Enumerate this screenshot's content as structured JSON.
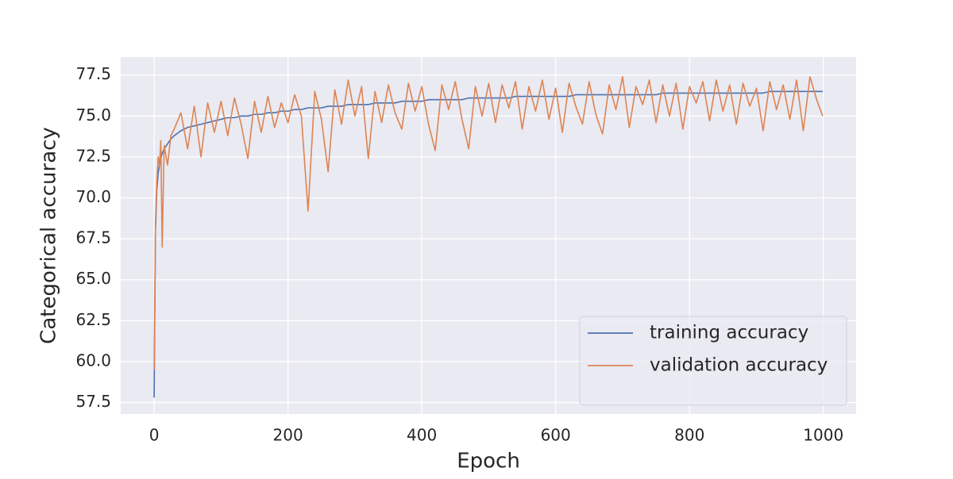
{
  "chart_data": {
    "type": "line",
    "xlabel": "Epoch",
    "ylabel": "Categorical accuracy",
    "x": [
      0,
      2,
      4,
      6,
      8,
      10,
      12,
      15,
      20,
      25,
      30,
      40,
      50,
      60,
      70,
      80,
      90,
      100,
      110,
      120,
      130,
      140,
      150,
      160,
      170,
      180,
      190,
      200,
      210,
      220,
      230,
      240,
      250,
      260,
      270,
      280,
      290,
      300,
      310,
      320,
      330,
      340,
      350,
      360,
      370,
      380,
      390,
      400,
      410,
      420,
      430,
      440,
      450,
      460,
      470,
      480,
      490,
      500,
      510,
      520,
      530,
      540,
      550,
      560,
      570,
      580,
      590,
      600,
      610,
      620,
      630,
      640,
      650,
      660,
      670,
      680,
      690,
      700,
      710,
      720,
      730,
      740,
      750,
      760,
      770,
      780,
      790,
      800,
      810,
      820,
      830,
      840,
      850,
      860,
      870,
      880,
      890,
      900,
      910,
      920,
      930,
      940,
      950,
      960,
      970,
      980,
      990,
      999
    ],
    "series": [
      {
        "name": "training accuracy",
        "color": "#4c72b0",
        "values": [
          57.8,
          68.0,
          70.5,
          71.5,
          72.0,
          72.4,
          72.7,
          73.0,
          73.3,
          73.6,
          73.8,
          74.1,
          74.3,
          74.4,
          74.5,
          74.6,
          74.7,
          74.8,
          74.9,
          74.9,
          75.0,
          75.0,
          75.1,
          75.1,
          75.2,
          75.2,
          75.3,
          75.3,
          75.4,
          75.4,
          75.5,
          75.5,
          75.5,
          75.6,
          75.6,
          75.6,
          75.7,
          75.7,
          75.7,
          75.7,
          75.8,
          75.8,
          75.8,
          75.8,
          75.9,
          75.9,
          75.9,
          75.9,
          76.0,
          76.0,
          76.0,
          76.0,
          76.0,
          76.0,
          76.1,
          76.1,
          76.1,
          76.1,
          76.1,
          76.1,
          76.1,
          76.2,
          76.2,
          76.2,
          76.2,
          76.2,
          76.2,
          76.2,
          76.2,
          76.2,
          76.3,
          76.3,
          76.3,
          76.3,
          76.3,
          76.3,
          76.3,
          76.3,
          76.3,
          76.3,
          76.3,
          76.3,
          76.3,
          76.4,
          76.4,
          76.4,
          76.4,
          76.4,
          76.4,
          76.4,
          76.4,
          76.4,
          76.4,
          76.4,
          76.4,
          76.4,
          76.4,
          76.4,
          76.4,
          76.5,
          76.5,
          76.5,
          76.5,
          76.5,
          76.5,
          76.5,
          76.5,
          76.5
        ]
      },
      {
        "name": "validation accuracy",
        "color": "#dd8452",
        "values": [
          59.5,
          68.5,
          71.0,
          72.5,
          72.0,
          73.5,
          67.0,
          73.2,
          72.0,
          73.8,
          74.2,
          75.2,
          73.0,
          75.6,
          72.5,
          75.8,
          74.0,
          75.9,
          73.8,
          76.1,
          74.5,
          72.4,
          75.9,
          74.0,
          76.2,
          74.3,
          75.8,
          74.6,
          76.3,
          75.0,
          69.2,
          76.5,
          74.8,
          71.6,
          76.6,
          74.5,
          77.2,
          75.0,
          76.8,
          72.4,
          76.5,
          74.6,
          76.9,
          75.2,
          74.2,
          77.0,
          75.3,
          76.8,
          74.5,
          72.9,
          76.9,
          75.4,
          77.1,
          74.8,
          73.0,
          76.8,
          75.0,
          77.0,
          74.6,
          76.9,
          75.5,
          77.1,
          74.2,
          76.8,
          75.3,
          77.2,
          74.8,
          76.7,
          74.0,
          77.0,
          75.6,
          74.5,
          77.1,
          75.1,
          73.9,
          76.9,
          75.4,
          77.4,
          74.3,
          76.8,
          75.7,
          77.2,
          74.6,
          76.9,
          75.0,
          77.0,
          74.2,
          76.8,
          75.8,
          77.1,
          74.7,
          77.2,
          75.3,
          76.9,
          74.5,
          77.0,
          75.6,
          76.7,
          74.1,
          77.1,
          75.4,
          76.9,
          74.8,
          77.2,
          74.1,
          77.4,
          76.0,
          75.0
        ]
      }
    ],
    "xlim": [
      -49.95,
      1048.95
    ],
    "xticks": [
      0,
      200,
      400,
      600,
      800,
      1000
    ],
    "ylim": [
      56.8,
      78.6
    ],
    "yticks": [
      57.5,
      {
        "value": 60,
        "label": "60.0"
      },
      62.5,
      {
        "value": 65,
        "label": "65.0"
      },
      67.5,
      {
        "value": 70,
        "label": "70.0"
      },
      72.5,
      {
        "value": 75,
        "label": "75.0"
      },
      77.5
    ],
    "grid": true,
    "legend": "lower right"
  }
}
